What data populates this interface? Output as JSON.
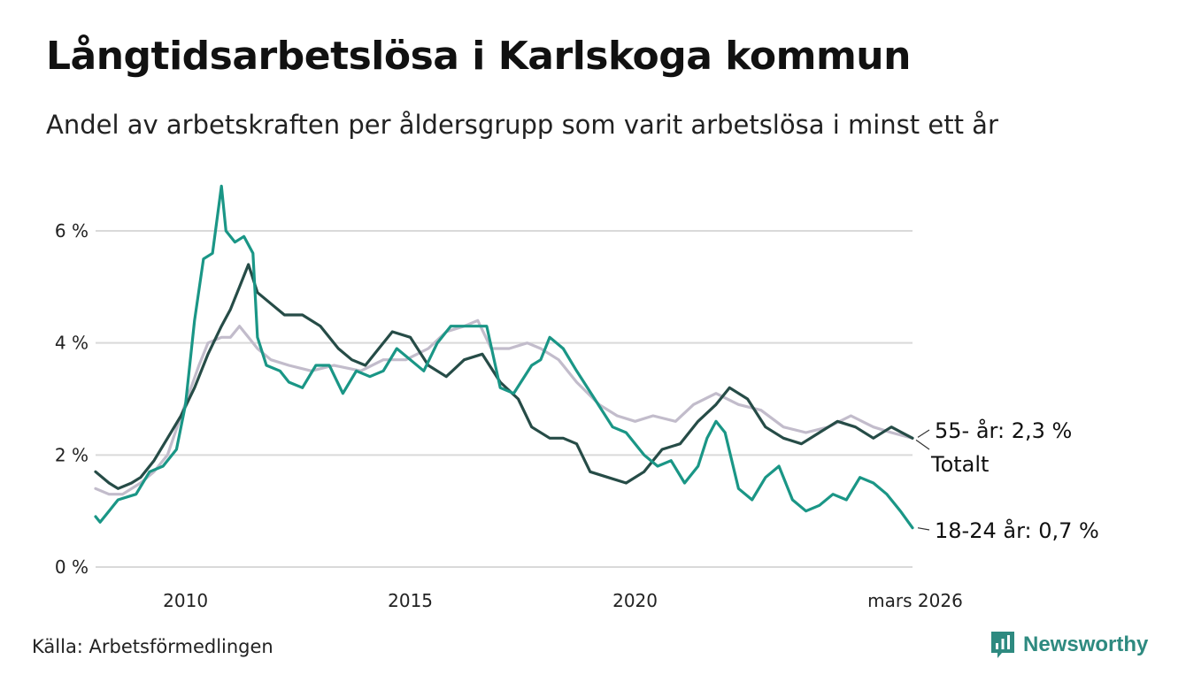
{
  "title": "Långtidsarbetslösa i Karlskoga kommun",
  "subtitle": "Andel av arbetskraften per åldersgrupp som varit arbetslösa i minst ett år",
  "source": "Källa: Arbetsförmedlingen",
  "brand": "Newsworthy",
  "colors": {
    "total": "#264c47",
    "age_55": "#c2bccb",
    "age_18_24": "#1a9686",
    "grid": "#d9d9d9"
  },
  "chart_data": {
    "type": "line",
    "title": "Långtidsarbetslösa i Karlskoga kommun",
    "xlabel": "",
    "ylabel": "",
    "xlim": [
      2008.0,
      2026.17
    ],
    "ylim": [
      0,
      6
    ],
    "yticks": [
      0,
      2,
      4,
      6
    ],
    "ytick_labels": [
      "0 %",
      "2 %",
      "4 %",
      "6 %"
    ],
    "xticks": [
      2010,
      2015,
      2020,
      2026.17
    ],
    "xtick_labels": [
      "2010",
      "2015",
      "2020",
      "mars 2026"
    ],
    "grid": true,
    "end_labels": {
      "age_55": "55- år: 2,3 %",
      "total": "Totalt",
      "age_18_24": "18-24 år: 0,7 %"
    },
    "series": [
      {
        "key": "age_55",
        "name": "55- år",
        "x": [
          2008.0,
          2008.3,
          2008.6,
          2009.0,
          2009.3,
          2009.6,
          2009.9,
          2010.3,
          2010.5,
          2010.8,
          2011.0,
          2011.2,
          2011.4,
          2011.6,
          2011.9,
          2012.3,
          2012.8,
          2013.3,
          2013.9,
          2014.4,
          2014.9,
          2015.4,
          2015.8,
          2016.2,
          2016.5,
          2016.8,
          2017.2,
          2017.6,
          2017.9,
          2018.3,
          2018.7,
          2019.2,
          2019.6,
          2020.0,
          2020.4,
          2020.9,
          2021.3,
          2021.8,
          2022.3,
          2022.8,
          2023.3,
          2023.8,
          2024.3,
          2024.8,
          2025.3,
          2025.7,
          2026.17
        ],
        "values": [
          1.4,
          1.3,
          1.3,
          1.5,
          1.7,
          2.0,
          2.7,
          3.6,
          4.0,
          4.1,
          4.1,
          4.3,
          4.1,
          3.9,
          3.7,
          3.6,
          3.5,
          3.6,
          3.5,
          3.7,
          3.7,
          3.9,
          4.2,
          4.3,
          4.4,
          3.9,
          3.9,
          4.0,
          3.9,
          3.7,
          3.3,
          2.9,
          2.7,
          2.6,
          2.7,
          2.6,
          2.9,
          3.1,
          2.9,
          2.8,
          2.5,
          2.4,
          2.5,
          2.7,
          2.5,
          2.4,
          2.3
        ]
      },
      {
        "key": "total",
        "name": "Totalt",
        "x": [
          2008.0,
          2008.3,
          2008.5,
          2008.8,
          2009.0,
          2009.3,
          2009.6,
          2009.9,
          2010.2,
          2010.5,
          2010.8,
          2011.0,
          2011.2,
          2011.4,
          2011.6,
          2011.9,
          2012.2,
          2012.6,
          2013.0,
          2013.4,
          2013.7,
          2014.0,
          2014.3,
          2014.6,
          2015.0,
          2015.4,
          2015.8,
          2016.2,
          2016.6,
          2017.0,
          2017.4,
          2017.7,
          2018.1,
          2018.4,
          2018.7,
          2019.0,
          2019.4,
          2019.8,
          2020.2,
          2020.6,
          2021.0,
          2021.4,
          2021.8,
          2022.1,
          2022.5,
          2022.9,
          2023.3,
          2023.7,
          2024.1,
          2024.5,
          2024.9,
          2025.3,
          2025.7,
          2026.17
        ],
        "values": [
          1.7,
          1.5,
          1.4,
          1.5,
          1.6,
          1.9,
          2.3,
          2.7,
          3.2,
          3.8,
          4.3,
          4.6,
          5.0,
          5.4,
          4.9,
          4.7,
          4.5,
          4.5,
          4.3,
          3.9,
          3.7,
          3.6,
          3.9,
          4.2,
          4.1,
          3.6,
          3.4,
          3.7,
          3.8,
          3.3,
          3.0,
          2.5,
          2.3,
          2.3,
          2.2,
          1.7,
          1.6,
          1.5,
          1.7,
          2.1,
          2.2,
          2.6,
          2.9,
          3.2,
          3.0,
          2.5,
          2.3,
          2.2,
          2.4,
          2.6,
          2.5,
          2.3,
          2.5,
          2.3
        ]
      },
      {
        "key": "age_18_24",
        "name": "18-24 år",
        "x": [
          2008.0,
          2008.1,
          2008.3,
          2008.5,
          2008.9,
          2009.2,
          2009.5,
          2009.8,
          2010.0,
          2010.2,
          2010.4,
          2010.6,
          2010.8,
          2010.9,
          2011.1,
          2011.3,
          2011.5,
          2011.6,
          2011.8,
          2012.1,
          2012.3,
          2012.6,
          2012.9,
          2013.2,
          2013.5,
          2013.8,
          2014.1,
          2014.4,
          2014.7,
          2015.0,
          2015.3,
          2015.6,
          2015.9,
          2016.1,
          2016.4,
          2016.7,
          2017.0,
          2017.3,
          2017.7,
          2017.9,
          2018.1,
          2018.4,
          2018.7,
          2019.1,
          2019.5,
          2019.8,
          2020.2,
          2020.5,
          2020.8,
          2021.1,
          2021.4,
          2021.6,
          2021.8,
          2022.0,
          2022.3,
          2022.6,
          2022.9,
          2023.2,
          2023.5,
          2023.8,
          2024.1,
          2024.4,
          2024.7,
          2025.0,
          2025.3,
          2025.6,
          2025.9,
          2026.17
        ],
        "values": [
          0.9,
          0.8,
          1.0,
          1.2,
          1.3,
          1.7,
          1.8,
          2.1,
          2.9,
          4.4,
          5.5,
          5.6,
          6.8,
          6.0,
          5.8,
          5.9,
          5.6,
          4.1,
          3.6,
          3.5,
          3.3,
          3.2,
          3.6,
          3.6,
          3.1,
          3.5,
          3.4,
          3.5,
          3.9,
          3.7,
          3.5,
          4.0,
          4.3,
          4.3,
          4.3,
          4.3,
          3.2,
          3.1,
          3.6,
          3.7,
          4.1,
          3.9,
          3.5,
          3.0,
          2.5,
          2.4,
          2.0,
          1.8,
          1.9,
          1.5,
          1.8,
          2.3,
          2.6,
          2.4,
          1.4,
          1.2,
          1.6,
          1.8,
          1.2,
          1.0,
          1.1,
          1.3,
          1.2,
          1.6,
          1.5,
          1.3,
          1.0,
          0.7
        ]
      }
    ]
  }
}
